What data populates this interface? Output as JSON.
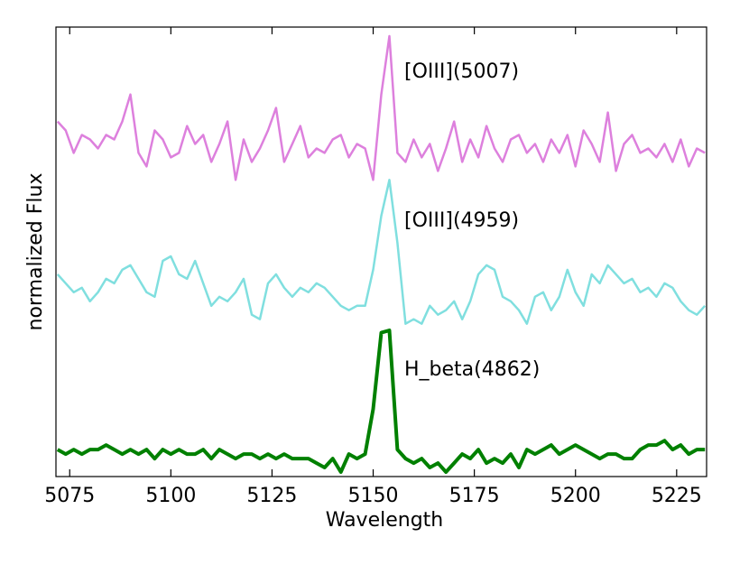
{
  "chart_data": {
    "type": "line",
    "xlabel": "Wavelength",
    "ylabel": "normalized Flux",
    "x": [
      5072,
      5074,
      5076,
      5078,
      5080,
      5082,
      5084,
      5086,
      5088,
      5090,
      5092,
      5094,
      5096,
      5098,
      5100,
      5102,
      5104,
      5106,
      5108,
      5110,
      5112,
      5114,
      5116,
      5118,
      5120,
      5122,
      5124,
      5126,
      5128,
      5130,
      5132,
      5134,
      5136,
      5138,
      5140,
      5142,
      5144,
      5146,
      5148,
      5150,
      5152,
      5154,
      5156,
      5158,
      5160,
      5162,
      5164,
      5166,
      5168,
      5170,
      5172,
      5174,
      5176,
      5178,
      5180,
      5182,
      5184,
      5186,
      5188,
      5190,
      5192,
      5194,
      5196,
      5198,
      5200,
      5202,
      5204,
      5206,
      5208,
      5210,
      5212,
      5214,
      5216,
      5218,
      5220,
      5222,
      5224,
      5226,
      5228,
      5230,
      5232
    ],
    "series": [
      {
        "name": "[OIII](5007)",
        "color": "#dd80dd",
        "label_color": "#c000c0",
        "values": [
          79,
          77,
          72,
          76,
          75,
          73,
          76,
          75,
          79,
          85,
          72,
          69,
          77,
          75,
          71,
          72,
          78,
          74,
          76,
          70,
          74,
          79,
          66,
          75,
          70,
          73,
          77,
          82,
          70,
          74,
          78,
          71,
          73,
          72,
          75,
          76,
          71,
          74,
          73,
          66,
          85,
          98,
          72,
          70,
          75,
          71,
          74,
          68,
          73,
          79,
          70,
          75,
          71,
          78,
          73,
          70,
          75,
          76,
          72,
          74,
          70,
          75,
          72,
          76,
          69,
          77,
          74,
          70,
          81,
          68,
          74,
          76,
          72,
          73,
          71,
          74,
          70,
          75,
          69,
          73,
          72
        ]
      },
      {
        "name": "[OIII](4959)",
        "color": "#80dfdf",
        "label_color": "#10b8b8",
        "values": [
          45,
          43,
          41,
          42,
          39,
          41,
          44,
          43,
          46,
          47,
          44,
          41,
          40,
          48,
          49,
          45,
          44,
          48,
          43,
          38,
          40,
          39,
          41,
          44,
          36,
          35,
          43,
          45,
          42,
          40,
          42,
          41,
          43,
          42,
          40,
          38,
          37,
          38,
          38,
          46,
          58,
          66,
          52,
          34,
          35,
          34,
          38,
          36,
          37,
          39,
          35,
          39,
          45,
          47,
          46,
          40,
          39,
          37,
          34,
          40,
          41,
          37,
          40,
          46,
          41,
          38,
          45,
          43,
          47,
          45,
          43,
          44,
          41,
          42,
          40,
          43,
          42,
          39,
          37,
          36,
          38
        ]
      },
      {
        "name": "H_beta(4862)",
        "color": "#008000",
        "label_color": "#008000",
        "values": [
          6,
          5,
          6,
          5,
          6,
          6,
          7,
          6,
          5,
          6,
          5,
          6,
          4,
          6,
          5,
          6,
          5,
          5,
          6,
          4,
          6,
          5,
          4,
          5,
          5,
          4,
          5,
          4,
          5,
          4,
          4,
          4,
          3,
          2,
          4,
          1,
          5,
          4,
          5,
          15,
          32,
          32.5,
          6,
          4,
          3,
          4,
          2,
          3,
          1,
          3,
          5,
          4,
          6,
          3,
          4,
          3,
          5,
          2,
          6,
          5,
          6,
          7,
          5,
          6,
          7,
          6,
          5,
          4,
          5,
          5,
          4,
          4,
          6,
          7,
          7,
          8,
          6,
          7,
          5,
          6,
          6
        ]
      }
    ],
    "xlim": [
      5071.6,
      5232.4
    ],
    "xticks": [
      5075,
      5100,
      5125,
      5150,
      5175,
      5200,
      5225
    ],
    "ylim": [
      0,
      100
    ]
  }
}
